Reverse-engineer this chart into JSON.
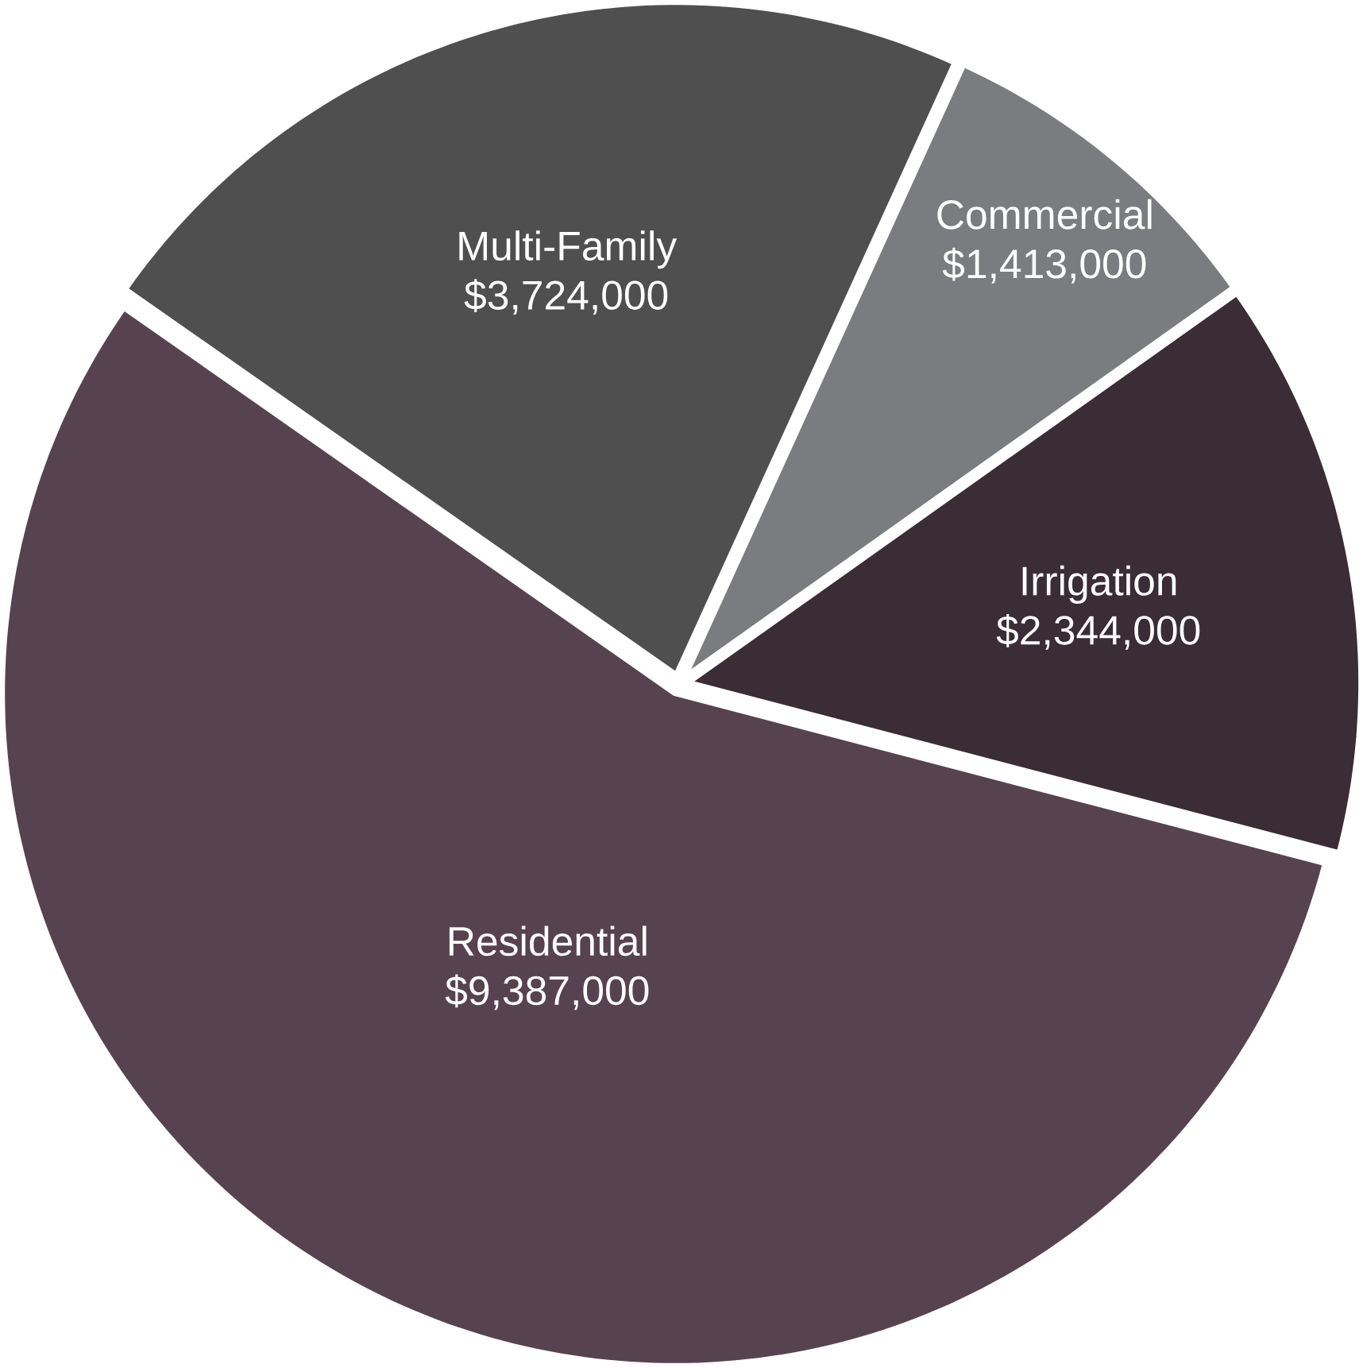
{
  "chart_data": {
    "type": "pie",
    "categories": [
      "Multi-Family",
      "Commercial",
      "Irrigation",
      "Residential"
    ],
    "values": [
      3724000,
      1413000,
      2344000,
      9387000
    ],
    "value_labels": [
      "$3,724,000",
      "$1,413,000",
      "$2,344,000",
      "$9,387,000"
    ],
    "colors": [
      "#4f4f50",
      "#7b7c7f",
      "#3a2d35",
      "#574350"
    ]
  }
}
